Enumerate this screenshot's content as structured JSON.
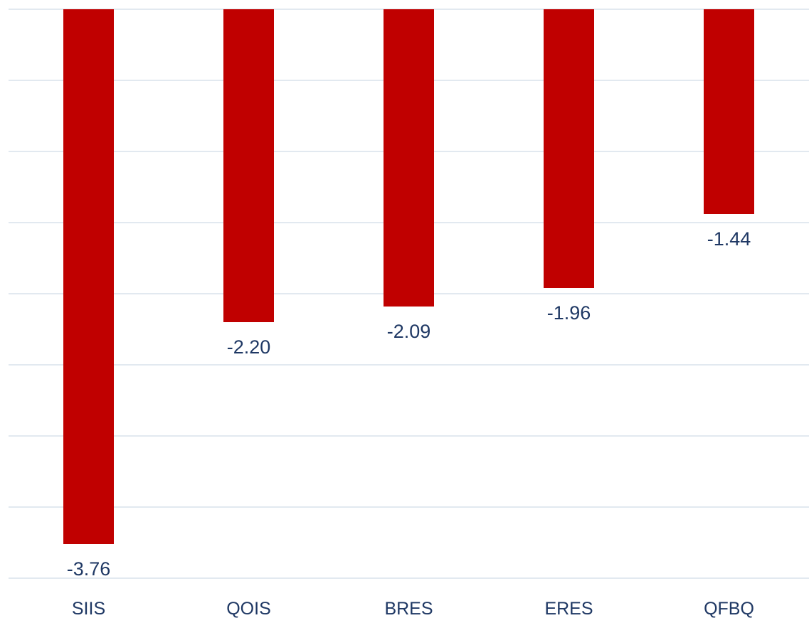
{
  "chart_data": {
    "type": "bar",
    "categories": [
      "SIIS",
      "QOIS",
      "BRES",
      "ERES",
      "QFBQ"
    ],
    "values": [
      -3.76,
      -2.2,
      -2.09,
      -1.96,
      -1.44
    ],
    "data_labels": [
      "-3.76",
      "-2.20",
      "-2.09",
      "-1.96",
      "-1.44"
    ],
    "title": "",
    "xlabel": "",
    "ylabel": "",
    "ylim": [
      -4,
      0
    ],
    "grid": true,
    "legend": "none",
    "colors": {
      "bar": "#c00000",
      "label": "#1f3864",
      "grid": "#d9e2ec"
    }
  }
}
